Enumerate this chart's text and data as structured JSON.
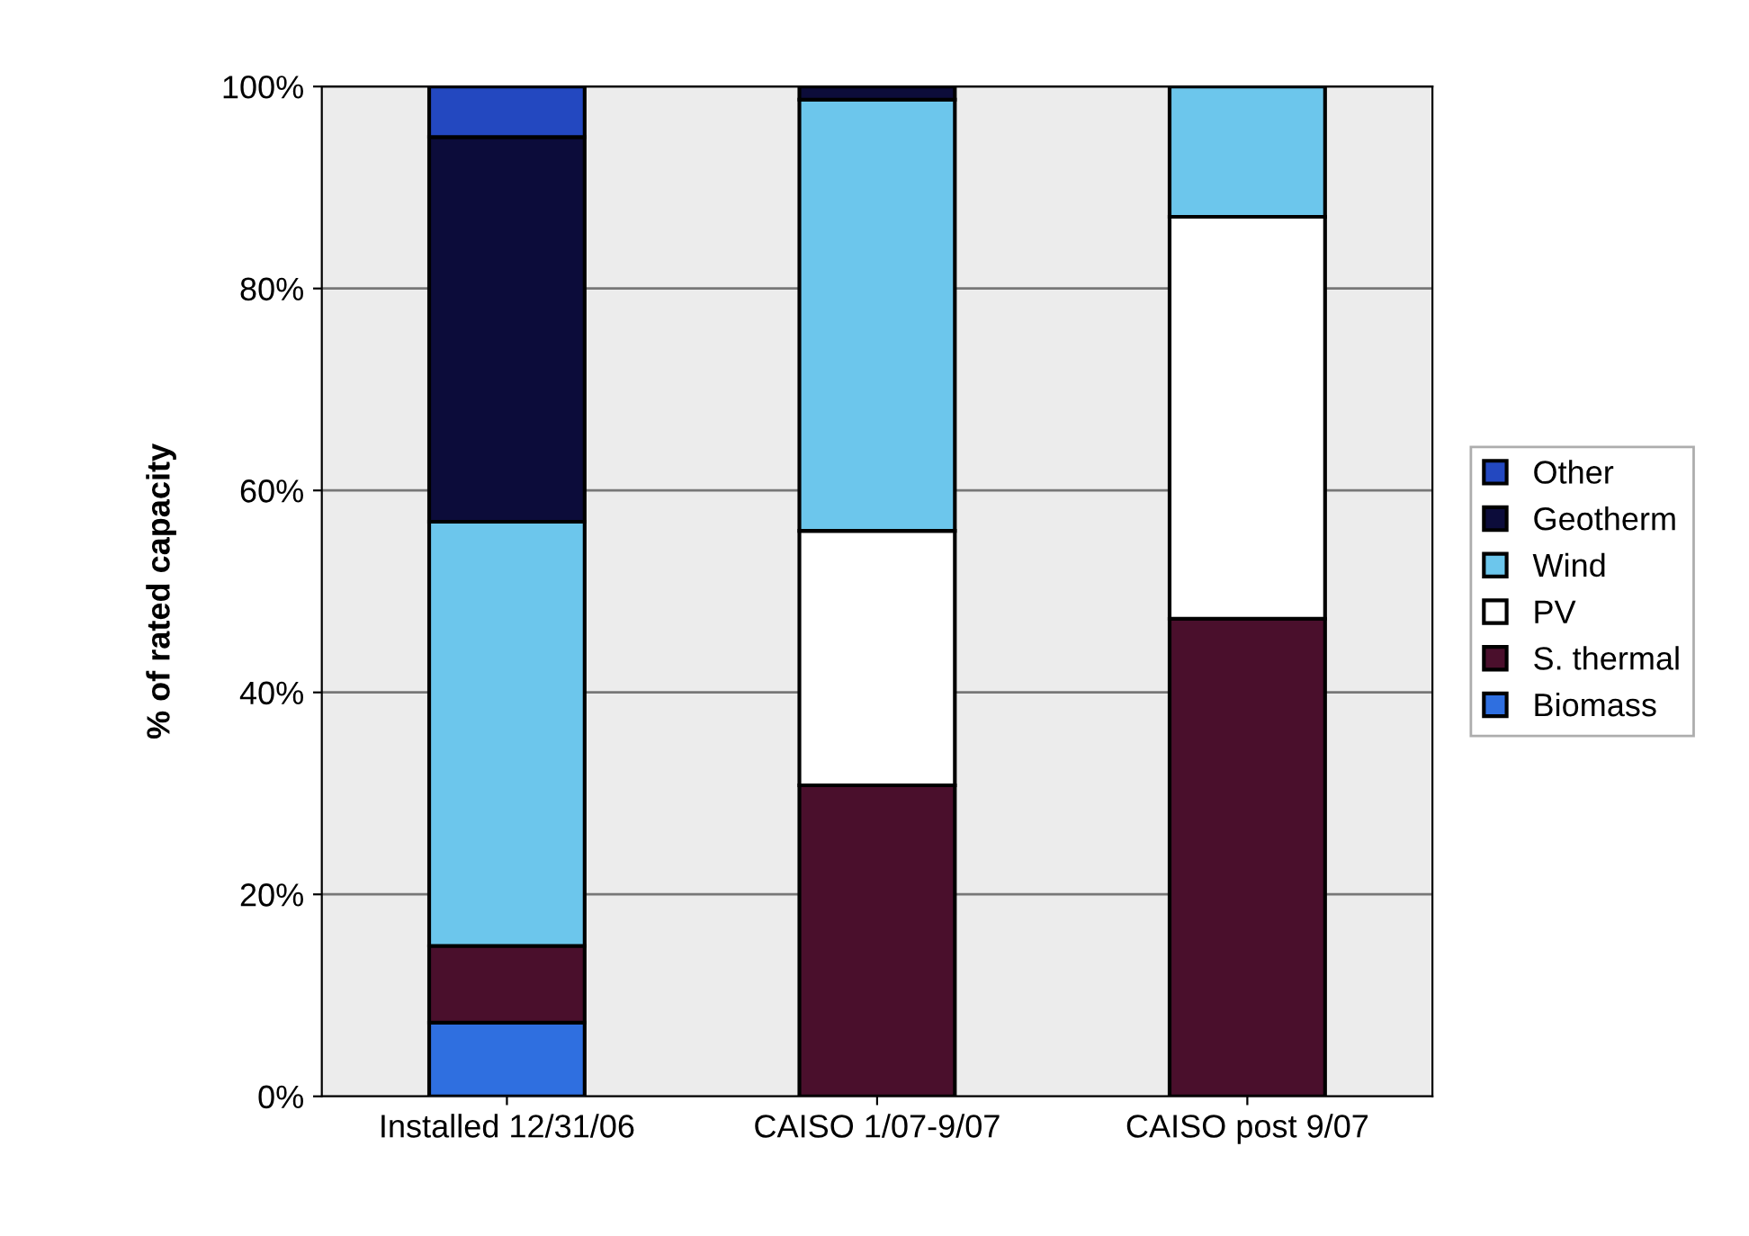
{
  "chart_data": {
    "type": "bar",
    "stacked": true,
    "ylabel": "% of rated capacity",
    "categories": [
      "Installed 12/31/06",
      "CAISO 1/07-9/07",
      "CAISO post 9/07"
    ],
    "series": [
      {
        "name": "Biomass",
        "color": "#2f6fe0",
        "values": [
          7.3,
          0,
          0
        ]
      },
      {
        "name": "S. thermal",
        "color": "#4a0f2c",
        "values": [
          7.6,
          30.8,
          47.3
        ]
      },
      {
        "name": "PV",
        "color": "#ffffff",
        "values": [
          0,
          25.2,
          39.8
        ]
      },
      {
        "name": "Wind",
        "color": "#6cc6ec",
        "values": [
          42.0,
          42.7,
          12.9
        ]
      },
      {
        "name": "Geotherm",
        "color": "#0c0c3a",
        "values": [
          38.1,
          1.3,
          0
        ]
      },
      {
        "name": "Other",
        "color": "#2348c0",
        "values": [
          5.0,
          0,
          0
        ]
      }
    ],
    "ylim": [
      0,
      100
    ],
    "yticks": [
      {
        "value": 0,
        "label": "0%"
      },
      {
        "value": 20,
        "label": "20%"
      },
      {
        "value": 40,
        "label": "40%"
      },
      {
        "value": 60,
        "label": "60%"
      },
      {
        "value": 80,
        "label": "80%"
      },
      {
        "value": 100,
        "label": "100%"
      }
    ],
    "grid": "y",
    "legend": "right"
  }
}
